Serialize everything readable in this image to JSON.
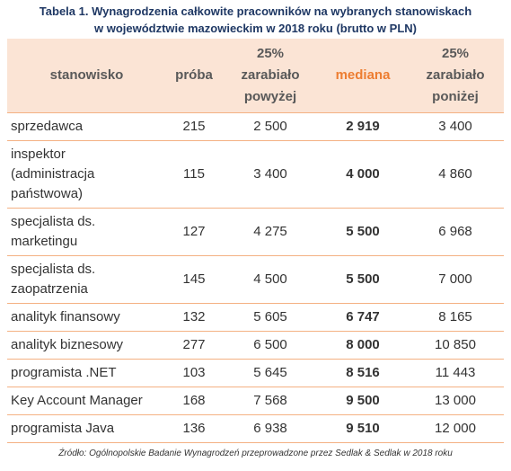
{
  "title": [
    "Tabela 1. Wynagrodzenia całkowite pracowników na wybranych stanowiskach",
    "w województwie mazowieckim w 2018 roku (brutto w PLN)"
  ],
  "table": {
    "header": [
      [
        "stanowisko"
      ],
      [
        "próba"
      ],
      [
        "25%",
        "zarabiało",
        "powyżej"
      ],
      [
        "mediana"
      ],
      [
        "25%",
        "zarabiało",
        "poniżej"
      ]
    ],
    "rows": [
      [
        [
          "sprzedawca"
        ],
        "215",
        "2 500",
        "2 919",
        "3 400"
      ],
      [
        [
          "inspektor",
          "(administracja",
          "państwowa)"
        ],
        "115",
        "3 400",
        "4 000",
        "4 860"
      ],
      [
        [
          "specjalista ds.",
          "marketingu"
        ],
        "127",
        "4 275",
        "5 500",
        "6 968"
      ],
      [
        [
          "specjalista ds.",
          "zaopatrzenia"
        ],
        "145",
        "4 500",
        "5 500",
        "7 000"
      ],
      [
        [
          "analityk finansowy"
        ],
        "132",
        "5 605",
        "6 747",
        "8 165"
      ],
      [
        [
          "analityk biznesowy"
        ],
        "277",
        "6 500",
        "8 000",
        "10 850"
      ],
      [
        [
          "programista .NET"
        ],
        "103",
        "5 645",
        "8 516",
        "11 443"
      ],
      [
        [
          "Key Account Manager"
        ],
        "168",
        "7 568",
        "9 500",
        "13 000"
      ],
      [
        [
          "programista Java"
        ],
        "136",
        "6 938",
        "9 510",
        "12 000"
      ]
    ]
  },
  "source": "Źródło: Ogólnopolskie Badanie Wynagrodzeń przeprowadzone przez Sedlak & Sedlak w 2018 roku"
}
